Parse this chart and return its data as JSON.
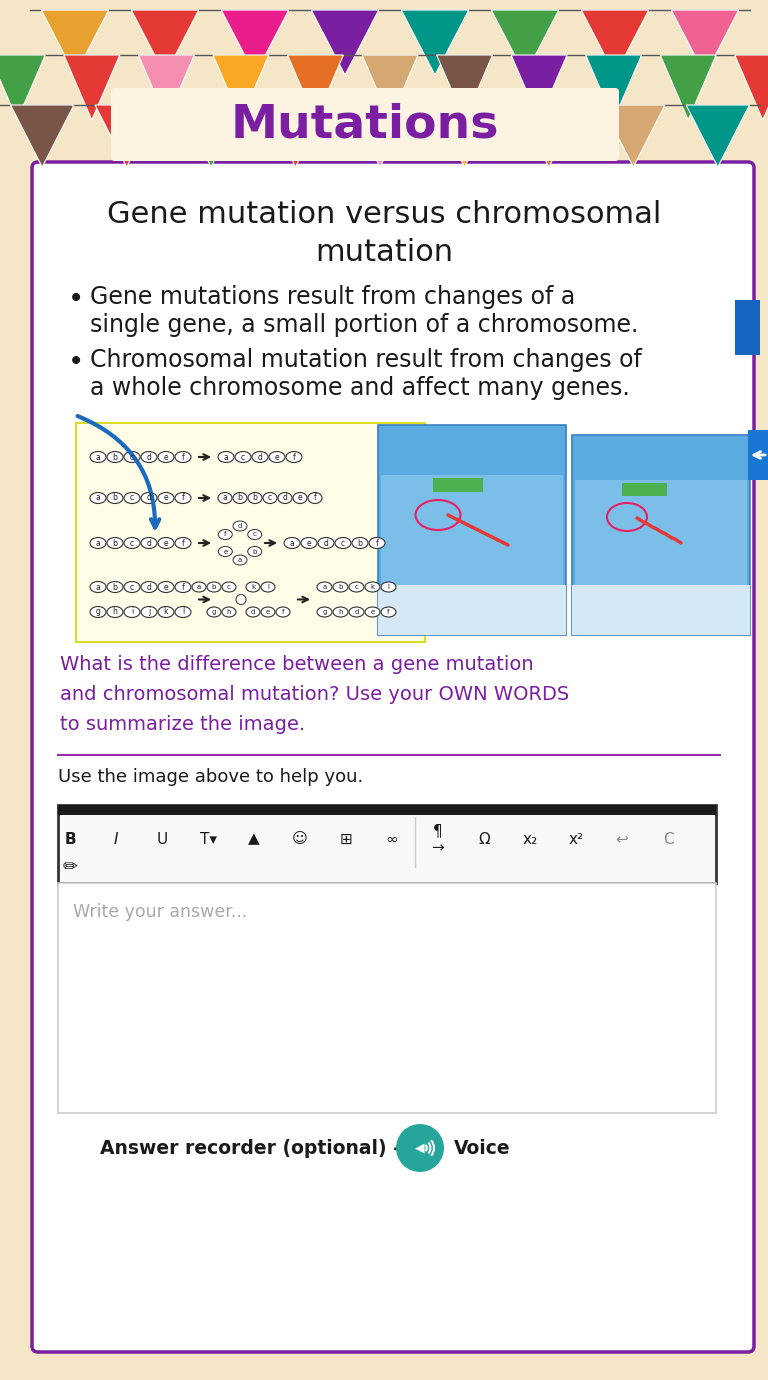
{
  "bg_color": "#f5e6c8",
  "title_text": "Mutations",
  "title_color": "#7b1fa2",
  "title_bg": "#fdf3e3",
  "main_bg": "#ffffff",
  "border_color": "#7b1fa2",
  "heading_line1": "Gene mutation versus chromosomal",
  "heading_line2": "mutation",
  "bullet1_line1": "Gene mutations result from changes of a",
  "bullet1_line2": "single gene, a small portion of a chromosome.",
  "bullet2_line1": "Chromosomal mutation result from changes of",
  "bullet2_line2": "a whole chromosome and affect many genes.",
  "question_text_lines": [
    "What is the difference between a gene mutation",
    "and chromosomal mutation? Use your OWN WORDS",
    "to summarize the image."
  ],
  "question_color": "#7b1fa2",
  "helper_text": "Use the image above to help you.",
  "placeholder_text": "Write your answer...",
  "answer_label": "Answer recorder (optional) -",
  "voice_label": "Voice",
  "bunting_row1_colors": [
    "#e8a030",
    "#e53935",
    "#e91e8c",
    "#7b1fa2",
    "#009688",
    "#43a047",
    "#e53935",
    "#f06292"
  ],
  "bunting_row2_colors": [
    "#43a047",
    "#e53935",
    "#f48fb1",
    "#f9a825",
    "#e57025",
    "#d4a870",
    "#795548",
    "#7b1fa2",
    "#009688",
    "#43a047",
    "#e53935"
  ],
  "bunting_row3_colors": [
    "#795548",
    "#e53935",
    "#43a047",
    "#e53935",
    "#f48fb1",
    "#f9a825",
    "#e57025",
    "#d4a870",
    "#009688"
  ],
  "teal_color": "#26a69a"
}
